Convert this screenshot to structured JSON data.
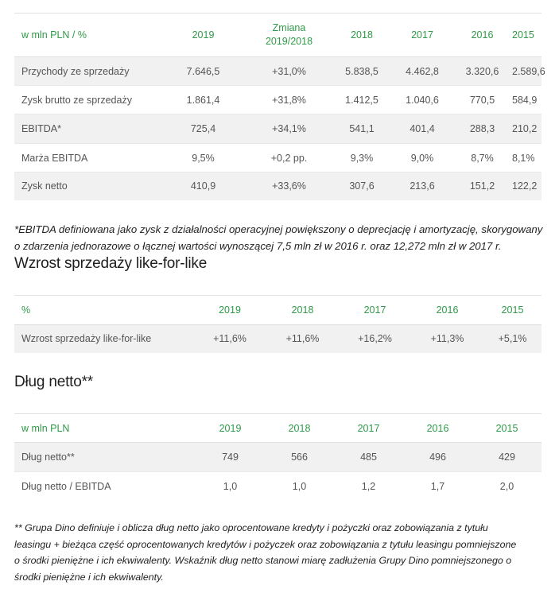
{
  "table1": {
    "header": [
      "w mln PLN / %",
      "2019",
      "Zmiana\n2019/2018",
      "2018",
      "2017",
      "2016",
      "2015"
    ],
    "rows": [
      [
        "Przychody ze sprzedaży",
        "7.646,5",
        "+31,0%",
        "5.838,5",
        "4.462,8",
        "3.320,6",
        "2.589,6"
      ],
      [
        "Zysk brutto ze sprzedaży",
        "1.861,4",
        "+31,8%",
        "1.412,5",
        "1.040,6",
        "770,5",
        "584,9"
      ],
      [
        "EBITDA*",
        "725,4",
        "+34,1%",
        "541,1",
        "401,4",
        "288,3",
        "210,2"
      ],
      [
        "Marża EBITDA",
        "9,5%",
        "+0,2 pp.",
        "9,3%",
        "9,0%",
        "8,7%",
        "8,1%"
      ],
      [
        "Zysk netto",
        "410,9",
        "+33,6%",
        "307,6",
        "213,6",
        "151,2",
        "122,2"
      ]
    ]
  },
  "note1": "*EBITDA definiowana jako zysk z działalności operacyjnej powiększony o deprecjację i amortyzację, skorygowany o zdarzenia jednorazowe o łącznej wartości wynoszącej 7,5 mln zł w 2016 r. oraz 12,272 mln zł w 2017 r.",
  "heading2": "Wzrost sprzedaży like-for-like",
  "table2": {
    "header": [
      "%",
      "2019",
      "2018",
      "2017",
      "2016",
      "2015"
    ],
    "rows": [
      [
        "Wzrost sprzedaży like-for-like",
        "+11,6%",
        "+11,6%",
        "+16,2%",
        "+11,3%",
        "+5,1%"
      ]
    ]
  },
  "heading3": "Dług netto**",
  "table3": {
    "header": [
      "w mln PLN",
      "2019",
      "2018",
      "2017",
      "2016",
      "2015"
    ],
    "rows": [
      [
        "Dług netto**",
        "749",
        "566",
        "485",
        "496",
        "429"
      ],
      [
        "Dług netto / EBITDA",
        "1,0",
        "1,0",
        "1,2",
        "1,7",
        "2,0"
      ]
    ]
  },
  "note2": "** Grupa Dino definiuje i oblicza dług netto jako oprocentowane kredyty i pożyczki oraz zobowiązania z tytułu leasingu + bieżąca część oprocentowanych kredytów i pożyczek oraz zobowiązania z tytułu leasingu pomniejszone o środki pieniężne i ich ekwiwalenty. Wskaźnik dług netto stanowi miarę zadłużenia Grupy Dino pomniejszonego o środki pieniężne i ich ekwiwalenty."
}
